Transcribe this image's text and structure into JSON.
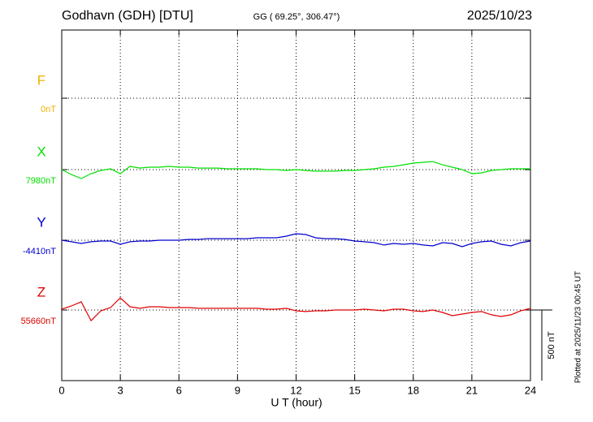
{
  "chart_data": {
    "type": "line",
    "title": "Godhavn (GDH)  [DTU]",
    "subtitle": "GG ( 69.25°, 306.47°)",
    "date": "2025/10/23",
    "x_label": "U T (hour)",
    "footnote": "Plotted at 2025/11/23 00:45 UT",
    "scale_bar": {
      "value": 500,
      "label": "500 nT"
    },
    "xlim": [
      0,
      24
    ],
    "xticks": [
      0,
      3,
      6,
      9,
      12,
      15,
      18,
      21,
      24
    ],
    "grid": true,
    "x": [
      0,
      0.5,
      1,
      1.5,
      2,
      2.5,
      3,
      3.5,
      4,
      4.5,
      5,
      5.5,
      6,
      6.5,
      7,
      7.5,
      8,
      8.5,
      9,
      9.5,
      10,
      10.5,
      11,
      11.5,
      12,
      12.5,
      13,
      13.5,
      14,
      14.5,
      15,
      15.5,
      16,
      16.5,
      17,
      17.5,
      18,
      18.5,
      19,
      19.5,
      20,
      20.5,
      21,
      21.5,
      22,
      22.5,
      23,
      23.5,
      24
    ],
    "series": [
      {
        "name": "F",
        "color": "#f0b000",
        "baseline": 0,
        "baseline_label": "0nT"
      },
      {
        "name": "X",
        "color": "#00e000",
        "baseline": 7980,
        "baseline_label": "7980nT",
        "values": [
          7980,
          7945,
          7917,
          7951,
          7974,
          7986,
          7951,
          8003,
          7991,
          7997,
          7997,
          8003,
          7997,
          7997,
          7991,
          7991,
          7991,
          7986,
          7986,
          7986,
          7986,
          7980,
          7980,
          7974,
          7980,
          7974,
          7969,
          7969,
          7969,
          7974,
          7974,
          7980,
          7986,
          7997,
          8003,
          8014,
          8026,
          8032,
          8037,
          8014,
          7997,
          7980,
          7951,
          7957,
          7974,
          7980,
          7986,
          7986,
          7986
        ]
      },
      {
        "name": "Y",
        "color": "#0000cc",
        "baseline": -4410,
        "baseline_label": "-4410nT",
        "values": [
          -4410,
          -4421,
          -4433,
          -4421,
          -4416,
          -4416,
          -4439,
          -4421,
          -4416,
          -4416,
          -4410,
          -4410,
          -4410,
          -4404,
          -4404,
          -4399,
          -4399,
          -4399,
          -4399,
          -4399,
          -4393,
          -4393,
          -4393,
          -4381,
          -4364,
          -4370,
          -4393,
          -4399,
          -4399,
          -4404,
          -4416,
          -4421,
          -4427,
          -4444,
          -4433,
          -4439,
          -4433,
          -4444,
          -4450,
          -4427,
          -4433,
          -4456,
          -4433,
          -4421,
          -4416,
          -4439,
          -4450,
          -4427,
          -4416
        ]
      },
      {
        "name": "Z",
        "color": "#e00000",
        "baseline": 55660,
        "baseline_label": "55660nT",
        "values": [
          55666,
          55689,
          55718,
          55585,
          55654,
          55677,
          55746,
          55683,
          55672,
          55683,
          55683,
          55677,
          55677,
          55677,
          55672,
          55672,
          55672,
          55672,
          55672,
          55672,
          55672,
          55666,
          55666,
          55672,
          55654,
          55649,
          55654,
          55654,
          55660,
          55660,
          55660,
          55666,
          55660,
          55654,
          55666,
          55666,
          55654,
          55649,
          55660,
          55643,
          55620,
          55631,
          55643,
          55649,
          55626,
          55614,
          55626,
          55654,
          55672
        ]
      }
    ]
  }
}
